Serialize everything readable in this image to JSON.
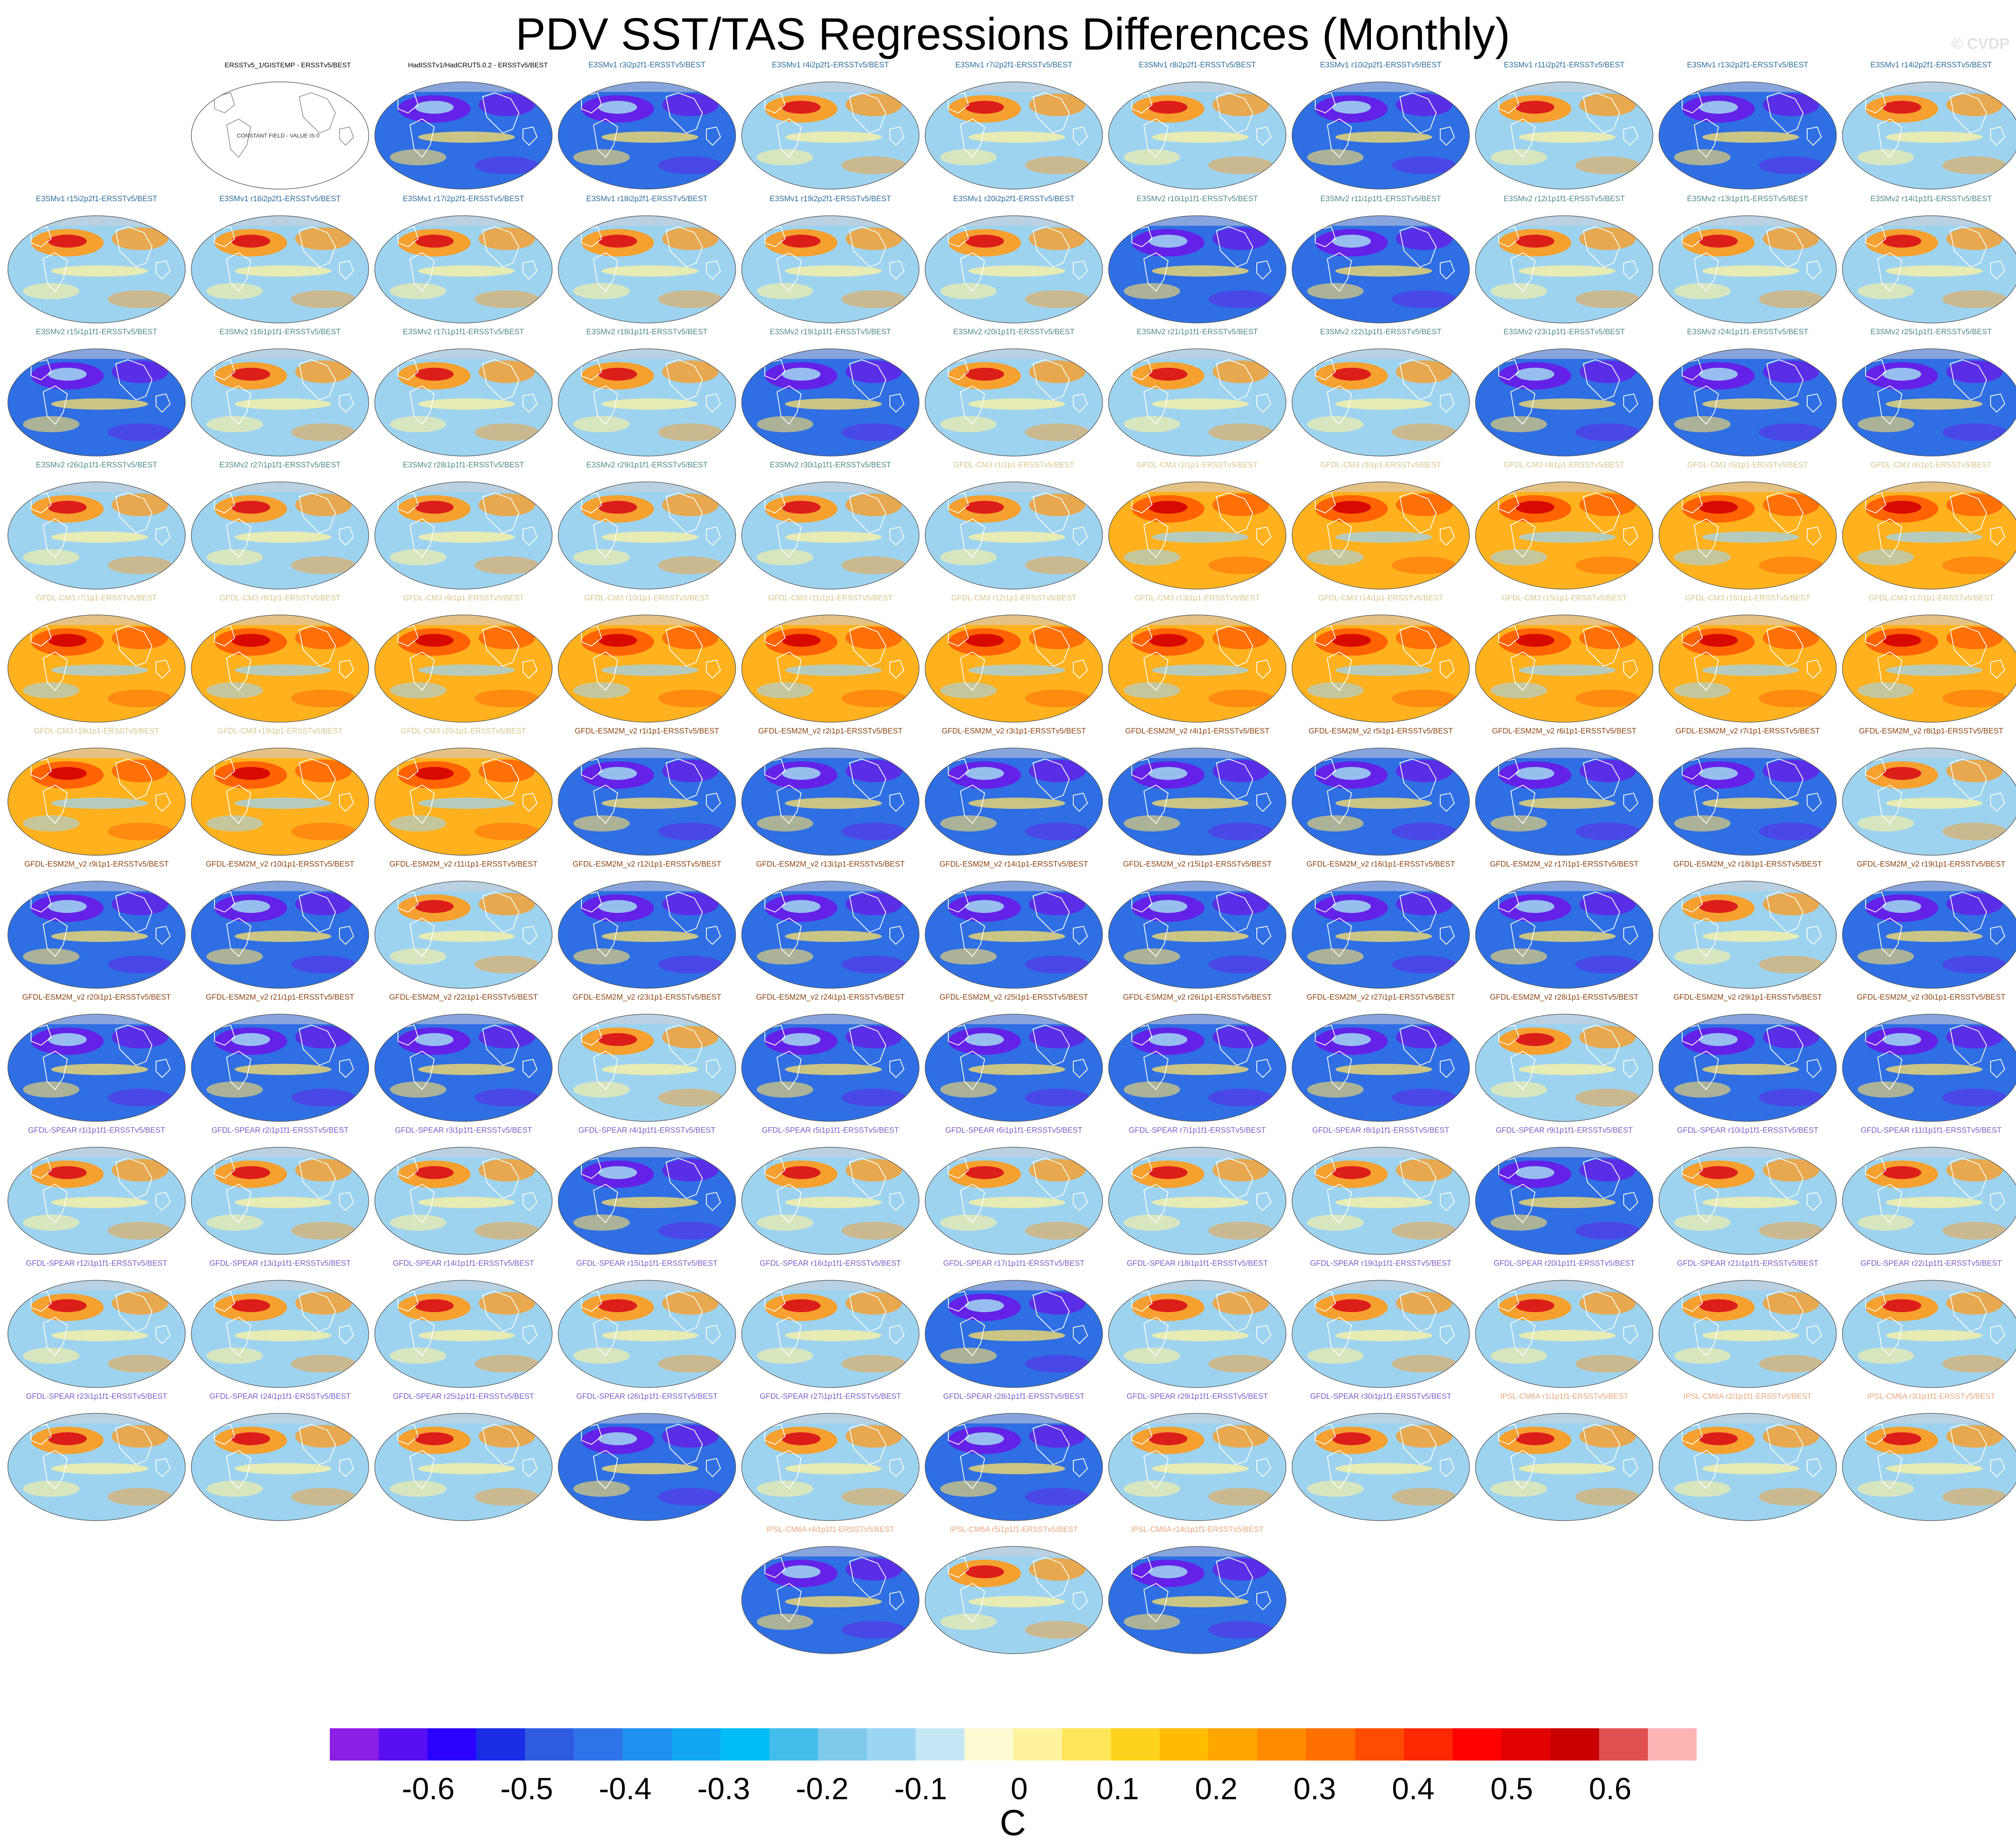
{
  "title": "PDV SST/TAS Regressions Differences (Monthly)",
  "watermark": "© CVDP",
  "colorbar": {
    "units": "C",
    "ticks": [
      "-0.6",
      "-0.5",
      "-0.4",
      "-0.3",
      "-0.2",
      "-0.1",
      "0",
      "0.1",
      "0.2",
      "0.3",
      "0.4",
      "0.5",
      "0.6"
    ],
    "colors": [
      "#8b1fe3",
      "#5a0ff3",
      "#2a00ff",
      "#1b2ee6",
      "#2e5be0",
      "#2f73e8",
      "#1f8ff0",
      "#12a6f3",
      "#00bdf5",
      "#43bdea",
      "#7fc9ea",
      "#9cd5f1",
      "#c6e6f5",
      "#fffbd2",
      "#fff3a0",
      "#ffe65a",
      "#ffd21e",
      "#ffbc00",
      "#ffa500",
      "#ff8c00",
      "#ff6e00",
      "#ff4d00",
      "#ff2800",
      "#ff0000",
      "#e30000",
      "#c80000",
      "#e05050",
      "#ffb4b4"
    ]
  },
  "panels": [
    {
      "label": "ERSSTv5_1/GISTEMP - ERSSTv5/BEST",
      "color": "#000000",
      "t": "c"
    },
    {
      "label": "HadISSTv1/HadCRUT5.0.2 - ERSSTv5/BEST",
      "color": "#000000",
      "t": "b"
    },
    {
      "label": "E3SMv1 r3i2p2f1-ERSSTv5/BEST",
      "color": "#2e6f9e",
      "t": "b"
    },
    {
      "label": "E3SMv1 r4i2p2f1-ERSSTv5/BEST",
      "color": "#2e6f9e",
      "t": "w"
    },
    {
      "label": "E3SMv1 r7i2p2f1-ERSSTv5/BEST",
      "color": "#2e6f9e",
      "t": "w"
    },
    {
      "label": "E3SMv1 r8i2p2f1-ERSSTv5/BEST",
      "color": "#2e6f9e",
      "t": "w"
    },
    {
      "label": "E3SMv1 r10i2p2f1-ERSSTv5/BEST",
      "color": "#2e6f9e",
      "t": "b"
    },
    {
      "label": "E3SMv1 r11i2p2f1-ERSSTv5/BEST",
      "color": "#2e6f9e",
      "t": "w"
    },
    {
      "label": "E3SMv1 r13i2p2f1-ERSSTv5/BEST",
      "color": "#2e6f9e",
      "t": "b"
    },
    {
      "label": "E3SMv1 r14i2p2f1-ERSSTv5/BEST",
      "color": "#2e6f9e",
      "t": "w"
    },
    {
      "label": "E3SMv1 r15i2p2f1-ERSSTv5/BEST",
      "color": "#2e6f9e",
      "t": "w"
    },
    {
      "label": "E3SMv1 r16i2p2f1-ERSSTv5/BEST",
      "color": "#2e6f9e",
      "t": "w"
    },
    {
      "label": "E3SMv1 r17i2p2f1-ERSSTv5/BEST",
      "color": "#2e6f9e",
      "t": "w"
    },
    {
      "label": "E3SMv1 r18i2p2f1-ERSSTv5/BEST",
      "color": "#2e6f9e",
      "t": "w"
    },
    {
      "label": "E3SMv1 r19i2p2f1-ERSSTv5/BEST",
      "color": "#2e6f9e",
      "t": "w"
    },
    {
      "label": "E3SMv1 r20i2p2f1-ERSSTv5/BEST",
      "color": "#2e6f9e",
      "t": "w"
    },
    {
      "label": "E3SMv2 r10i1p1f1-ERSSTv5/BEST",
      "color": "#4f8a8b",
      "t": "b"
    },
    {
      "label": "E3SMv2 r11i1p1f1-ERSSTv5/BEST",
      "color": "#4f8a8b",
      "t": "b"
    },
    {
      "label": "E3SMv2 r12i1p1f1-ERSSTv5/BEST",
      "color": "#4f8a8b",
      "t": "w"
    },
    {
      "label": "E3SMv2 r13i1p1f1-ERSSTv5/BEST",
      "color": "#4f8a8b",
      "t": "w"
    },
    {
      "label": "E3SMv2 r14i1p1f1-ERSSTv5/BEST",
      "color": "#4f8a8b",
      "t": "w"
    },
    {
      "label": "E3SMv2 r15i1p1f1-ERSSTv5/BEST",
      "color": "#4f8a8b",
      "t": "b"
    },
    {
      "label": "E3SMv2 r16i1p1f1-ERSSTv5/BEST",
      "color": "#4f8a8b",
      "t": "w"
    },
    {
      "label": "E3SMv2 r17i1p1f1-ERSSTv5/BEST",
      "color": "#4f8a8b",
      "t": "w"
    },
    {
      "label": "E3SMv2 r18i1p1f1-ERSSTv5/BEST",
      "color": "#4f8a8b",
      "t": "w"
    },
    {
      "label": "E3SMv2 r19i1p1f1-ERSSTv5/BEST",
      "color": "#4f8a8b",
      "t": "b"
    },
    {
      "label": "E3SMv2 r20i1p1f1-ERSSTv5/BEST",
      "color": "#4f8a8b",
      "t": "w"
    },
    {
      "label": "E3SMv2 r21i1p1f1-ERSSTv5/BEST",
      "color": "#4f8a8b",
      "t": "w"
    },
    {
      "label": "E3SMv2 r22i1p1f1-ERSSTv5/BEST",
      "color": "#4f8a8b",
      "t": "w"
    },
    {
      "label": "E3SMv2 r23i1p1f1-ERSSTv5/BEST",
      "color": "#4f8a8b",
      "t": "b"
    },
    {
      "label": "E3SMv2 r24i1p1f1-ERSSTv5/BEST",
      "color": "#4f8a8b",
      "t": "b"
    },
    {
      "label": "E3SMv2 r25i1p1f1-ERSSTv5/BEST",
      "color": "#4f8a8b",
      "t": "b"
    },
    {
      "label": "E3SMv2 r26i1p1f1-ERSSTv5/BEST",
      "color": "#4f8a8b",
      "t": "w"
    },
    {
      "label": "E3SMv2 r27i1p1f1-ERSSTv5/BEST",
      "color": "#4f8a8b",
      "t": "w"
    },
    {
      "label": "E3SMv2 r28i1p1f1-ERSSTv5/BEST",
      "color": "#4f8a8b",
      "t": "w"
    },
    {
      "label": "E3SMv2 r29i1p1f1-ERSSTv5/BEST",
      "color": "#4f8a8b",
      "t": "w"
    },
    {
      "label": "E3SMv2 r30i1p1f1-ERSSTv5/BEST",
      "color": "#4f8a8b",
      "t": "w"
    },
    {
      "label": "GFDL-CM3 r1i1p1-ERSSTv5/BEST",
      "color": "#d8c58c",
      "t": "w"
    },
    {
      "label": "GFDL-CM3 r2i1p1-ERSSTv5/BEST",
      "color": "#d8c58c",
      "t": "h"
    },
    {
      "label": "GFDL-CM3 r3i1p1-ERSSTv5/BEST",
      "color": "#d8c58c",
      "t": "h"
    },
    {
      "label": "GFDL-CM3 r4i1p1-ERSSTv5/BEST",
      "color": "#d8c58c",
      "t": "h"
    },
    {
      "label": "GFDL-CM3 r5i1p1-ERSSTv5/BEST",
      "color": "#d8c58c",
      "t": "h"
    },
    {
      "label": "GFDL-CM3 r6i1p1-ERSSTv5/BEST",
      "color": "#d8c58c",
      "t": "h"
    },
    {
      "label": "GFDL-CM3 r7i1p1-ERSSTv5/BEST",
      "color": "#d8c58c",
      "t": "h"
    },
    {
      "label": "GFDL-CM3 r8i1p1-ERSSTv5/BEST",
      "color": "#d8c58c",
      "t": "h"
    },
    {
      "label": "GFDL-CM3 r9i1p1-ERSSTv5/BEST",
      "color": "#d8c58c",
      "t": "h"
    },
    {
      "label": "GFDL-CM3 r10i1p1-ERSSTv5/BEST",
      "color": "#d8c58c",
      "t": "h"
    },
    {
      "label": "GFDL-CM3 r11i1p1-ERSSTv5/BEST",
      "color": "#d8c58c",
      "t": "h"
    },
    {
      "label": "GFDL-CM3 r12i1p1-ERSSTv5/BEST",
      "color": "#d8c58c",
      "t": "h"
    },
    {
      "label": "GFDL-CM3 r13i1p1-ERSSTv5/BEST",
      "color": "#d8c58c",
      "t": "h"
    },
    {
      "label": "GFDL-CM3 r14i1p1-ERSSTv5/BEST",
      "color": "#d8c58c",
      "t": "h"
    },
    {
      "label": "GFDL-CM3 r15i1p1-ERSSTv5/BEST",
      "color": "#d8c58c",
      "t": "h"
    },
    {
      "label": "GFDL-CM3 r16i1p1-ERSSTv5/BEST",
      "color": "#d8c58c",
      "t": "h"
    },
    {
      "label": "GFDL-CM3 r17i1p1-ERSSTv5/BEST",
      "color": "#d8c58c",
      "t": "h"
    },
    {
      "label": "GFDL-CM3 r18i1p1-ERSSTv5/BEST",
      "color": "#d8c58c",
      "t": "h"
    },
    {
      "label": "GFDL-CM3 r19i1p1-ERSSTv5/BEST",
      "color": "#d8c58c",
      "t": "h"
    },
    {
      "label": "GFDL-CM3 r20i1p1-ERSSTv5/BEST",
      "color": "#d8c58c",
      "t": "h"
    },
    {
      "label": "GFDL-ESM2M_v2 r1i1p1-ERSSTv5/BEST",
      "color": "#8b4513",
      "t": "b"
    },
    {
      "label": "GFDL-ESM2M_v2 r2i1p1-ERSSTv5/BEST",
      "color": "#8b4513",
      "t": "b"
    },
    {
      "label": "GFDL-ESM2M_v2 r3i1p1-ERSSTv5/BEST",
      "color": "#8b4513",
      "t": "b"
    },
    {
      "label": "GFDL-ESM2M_v2 r4i1p1-ERSSTv5/BEST",
      "color": "#8b4513",
      "t": "b"
    },
    {
      "label": "GFDL-ESM2M_v2 r5i1p1-ERSSTv5/BEST",
      "color": "#8b4513",
      "t": "b"
    },
    {
      "label": "GFDL-ESM2M_v2 r6i1p1-ERSSTv5/BEST",
      "color": "#8b4513",
      "t": "b"
    },
    {
      "label": "GFDL-ESM2M_v2 r7i1p1-ERSSTv5/BEST",
      "color": "#8b4513",
      "t": "b"
    },
    {
      "label": "GFDL-ESM2M_v2 r8i1p1-ERSSTv5/BEST",
      "color": "#8b4513",
      "t": "w"
    },
    {
      "label": "GFDL-ESM2M_v2 r9i1p1-ERSSTv5/BEST",
      "color": "#8b4513",
      "t": "b"
    },
    {
      "label": "GFDL-ESM2M_v2 r10i1p1-ERSSTv5/BEST",
      "color": "#8b4513",
      "t": "b"
    },
    {
      "label": "GFDL-ESM2M_v2 r11i1p1-ERSSTv5/BEST",
      "color": "#8b4513",
      "t": "w"
    },
    {
      "label": "GFDL-ESM2M_v2 r12i1p1-ERSSTv5/BEST",
      "color": "#8b4513",
      "t": "b"
    },
    {
      "label": "GFDL-ESM2M_v2 r13i1p1-ERSSTv5/BEST",
      "color": "#8b4513",
      "t": "b"
    },
    {
      "label": "GFDL-ESM2M_v2 r14i1p1-ERSSTv5/BEST",
      "color": "#8b4513",
      "t": "b"
    },
    {
      "label": "GFDL-ESM2M_v2 r15i1p1-ERSSTv5/BEST",
      "color": "#8b4513",
      "t": "b"
    },
    {
      "label": "GFDL-ESM2M_v2 r16i1p1-ERSSTv5/BEST",
      "color": "#8b4513",
      "t": "b"
    },
    {
      "label": "GFDL-ESM2M_v2 r17i1p1-ERSSTv5/BEST",
      "color": "#8b4513",
      "t": "b"
    },
    {
      "label": "GFDL-ESM2M_v2 r18i1p1-ERSSTv5/BEST",
      "color": "#8b4513",
      "t": "w"
    },
    {
      "label": "GFDL-ESM2M_v2 r19i1p1-ERSSTv5/BEST",
      "color": "#8b4513",
      "t": "b"
    },
    {
      "label": "GFDL-ESM2M_v2 r20i1p1-ERSSTv5/BEST",
      "color": "#8b4513",
      "t": "b"
    },
    {
      "label": "GFDL-ESM2M_v2 r21i1p1-ERSSTv5/BEST",
      "color": "#8b4513",
      "t": "b"
    },
    {
      "label": "GFDL-ESM2M_v2 r22i1p1-ERSSTv5/BEST",
      "color": "#8b4513",
      "t": "b"
    },
    {
      "label": "GFDL-ESM2M_v2 r23i1p1-ERSSTv5/BEST",
      "color": "#8b4513",
      "t": "w"
    },
    {
      "label": "GFDL-ESM2M_v2 r24i1p1-ERSSTv5/BEST",
      "color": "#8b4513",
      "t": "b"
    },
    {
      "label": "GFDL-ESM2M_v2 r25i1p1-ERSSTv5/BEST",
      "color": "#8b4513",
      "t": "b"
    },
    {
      "label": "GFDL-ESM2M_v2 r26i1p1-ERSSTv5/BEST",
      "color": "#8b4513",
      "t": "b"
    },
    {
      "label": "GFDL-ESM2M_v2 r27i1p1-ERSSTv5/BEST",
      "color": "#8b4513",
      "t": "b"
    },
    {
      "label": "GFDL-ESM2M_v2 r28i1p1-ERSSTv5/BEST",
      "color": "#8b4513",
      "t": "w"
    },
    {
      "label": "GFDL-ESM2M_v2 r29i1p1-ERSSTv5/BEST",
      "color": "#8b4513",
      "t": "b"
    },
    {
      "label": "GFDL-ESM2M_v2 r30i1p1-ERSSTv5/BEST",
      "color": "#8b4513",
      "t": "b"
    },
    {
      "label": "GFDL-SPEAR r1i1p1f1-ERSSTv5/BEST",
      "color": "#7b5cc9",
      "t": "w"
    },
    {
      "label": "GFDL-SPEAR r2i1p1f1-ERSSTv5/BEST",
      "color": "#7b5cc9",
      "t": "w"
    },
    {
      "label": "GFDL-SPEAR r3i1p1f1-ERSSTv5/BEST",
      "color": "#7b5cc9",
      "t": "w"
    },
    {
      "label": "GFDL-SPEAR r4i1p1f1-ERSSTv5/BEST",
      "color": "#7b5cc9",
      "t": "b"
    },
    {
      "label": "GFDL-SPEAR r5i1p1f1-ERSSTv5/BEST",
      "color": "#7b5cc9",
      "t": "w"
    },
    {
      "label": "GFDL-SPEAR r6i1p1f1-ERSSTv5/BEST",
      "color": "#7b5cc9",
      "t": "w"
    },
    {
      "label": "GFDL-SPEAR r7i1p1f1-ERSSTv5/BEST",
      "color": "#7b5cc9",
      "t": "w"
    },
    {
      "label": "GFDL-SPEAR r8i1p1f1-ERSSTv5/BEST",
      "color": "#7b5cc9",
      "t": "w"
    },
    {
      "label": "GFDL-SPEAR r9i1p1f1-ERSSTv5/BEST",
      "color": "#7b5cc9",
      "t": "b"
    },
    {
      "label": "GFDL-SPEAR r10i1p1f1-ERSSTv5/BEST",
      "color": "#7b5cc9",
      "t": "w"
    },
    {
      "label": "GFDL-SPEAR r11i1p1f1-ERSSTv5/BEST",
      "color": "#7b5cc9",
      "t": "w"
    },
    {
      "label": "GFDL-SPEAR r12i1p1f1-ERSSTv5/BEST",
      "color": "#7b5cc9",
      "t": "w"
    },
    {
      "label": "GFDL-SPEAR r13i1p1f1-ERSSTv5/BEST",
      "color": "#7b5cc9",
      "t": "w"
    },
    {
      "label": "GFDL-SPEAR r14i1p1f1-ERSSTv5/BEST",
      "color": "#7b5cc9",
      "t": "w"
    },
    {
      "label": "GFDL-SPEAR r15i1p1f1-ERSSTv5/BEST",
      "color": "#7b5cc9",
      "t": "w"
    },
    {
      "label": "GFDL-SPEAR r16i1p1f1-ERSSTv5/BEST",
      "color": "#7b5cc9",
      "t": "w"
    },
    {
      "label": "GFDL-SPEAR r17i1p1f1-ERSSTv5/BEST",
      "color": "#7b5cc9",
      "t": "b"
    },
    {
      "label": "GFDL-SPEAR r18i1p1f1-ERSSTv5/BEST",
      "color": "#7b5cc9",
      "t": "w"
    },
    {
      "label": "GFDL-SPEAR r19i1p1f1-ERSSTv5/BEST",
      "color": "#7b5cc9",
      "t": "w"
    },
    {
      "label": "GFDL-SPEAR r20i1p1f1-ERSSTv5/BEST",
      "color": "#7b5cc9",
      "t": "w"
    },
    {
      "label": "GFDL-SPEAR r21i1p1f1-ERSSTv5/BEST",
      "color": "#7b5cc9",
      "t": "w"
    },
    {
      "label": "GFDL-SPEAR r22i1p1f1-ERSSTv5/BEST",
      "color": "#7b5cc9",
      "t": "w"
    },
    {
      "label": "GFDL-SPEAR r23i1p1f1-ERSSTv5/BEST",
      "color": "#7b5cc9",
      "t": "w"
    },
    {
      "label": "GFDL-SPEAR r24i1p1f1-ERSSTv5/BEST",
      "color": "#7b5cc9",
      "t": "w"
    },
    {
      "label": "GFDL-SPEAR r25i1p1f1-ERSSTv5/BEST",
      "color": "#7b5cc9",
      "t": "w"
    },
    {
      "label": "GFDL-SPEAR r26i1p1f1-ERSSTv5/BEST",
      "color": "#7b5cc9",
      "t": "b"
    },
    {
      "label": "GFDL-SPEAR r27i1p1f1-ERSSTv5/BEST",
      "color": "#7b5cc9",
      "t": "w"
    },
    {
      "label": "GFDL-SPEAR r28i1p1f1-ERSSTv5/BEST",
      "color": "#7b5cc9",
      "t": "b"
    },
    {
      "label": "GFDL-SPEAR r29i1p1f1-ERSSTv5/BEST",
      "color": "#7b5cc9",
      "t": "w"
    },
    {
      "label": "GFDL-SPEAR r30i1p1f1-ERSSTv5/BEST",
      "color": "#7b5cc9",
      "t": "w"
    },
    {
      "label": "IPSL-CM6A r1i1p1f1-ERSSTv5/BEST",
      "color": "#e8a77d",
      "t": "w"
    },
    {
      "label": "IPSL-CM6A r2i1p1f1-ERSSTv5/BEST",
      "color": "#e8a77d",
      "t": "w"
    },
    {
      "label": "IPSL-CM6A r3i1p1f1-ERSSTv5/BEST",
      "color": "#e8a77d",
      "t": "w"
    },
    {
      "label": "IPSL-CM6A r4i1p1f1-ERSSTv5/BEST",
      "color": "#e8a77d",
      "t": "b"
    },
    {
      "label": "IPSL-CM6A r5i1p1f1-ERSSTv5/BEST",
      "color": "#e8a77d",
      "t": "w"
    },
    {
      "label": "IPSL-CM6A r14i1p1f1-ERSSTv5/BEST",
      "color": "#e8a77d",
      "t": "b"
    }
  ],
  "constant_field_note": "CONSTANT FIELD - VALUE IS 0"
}
